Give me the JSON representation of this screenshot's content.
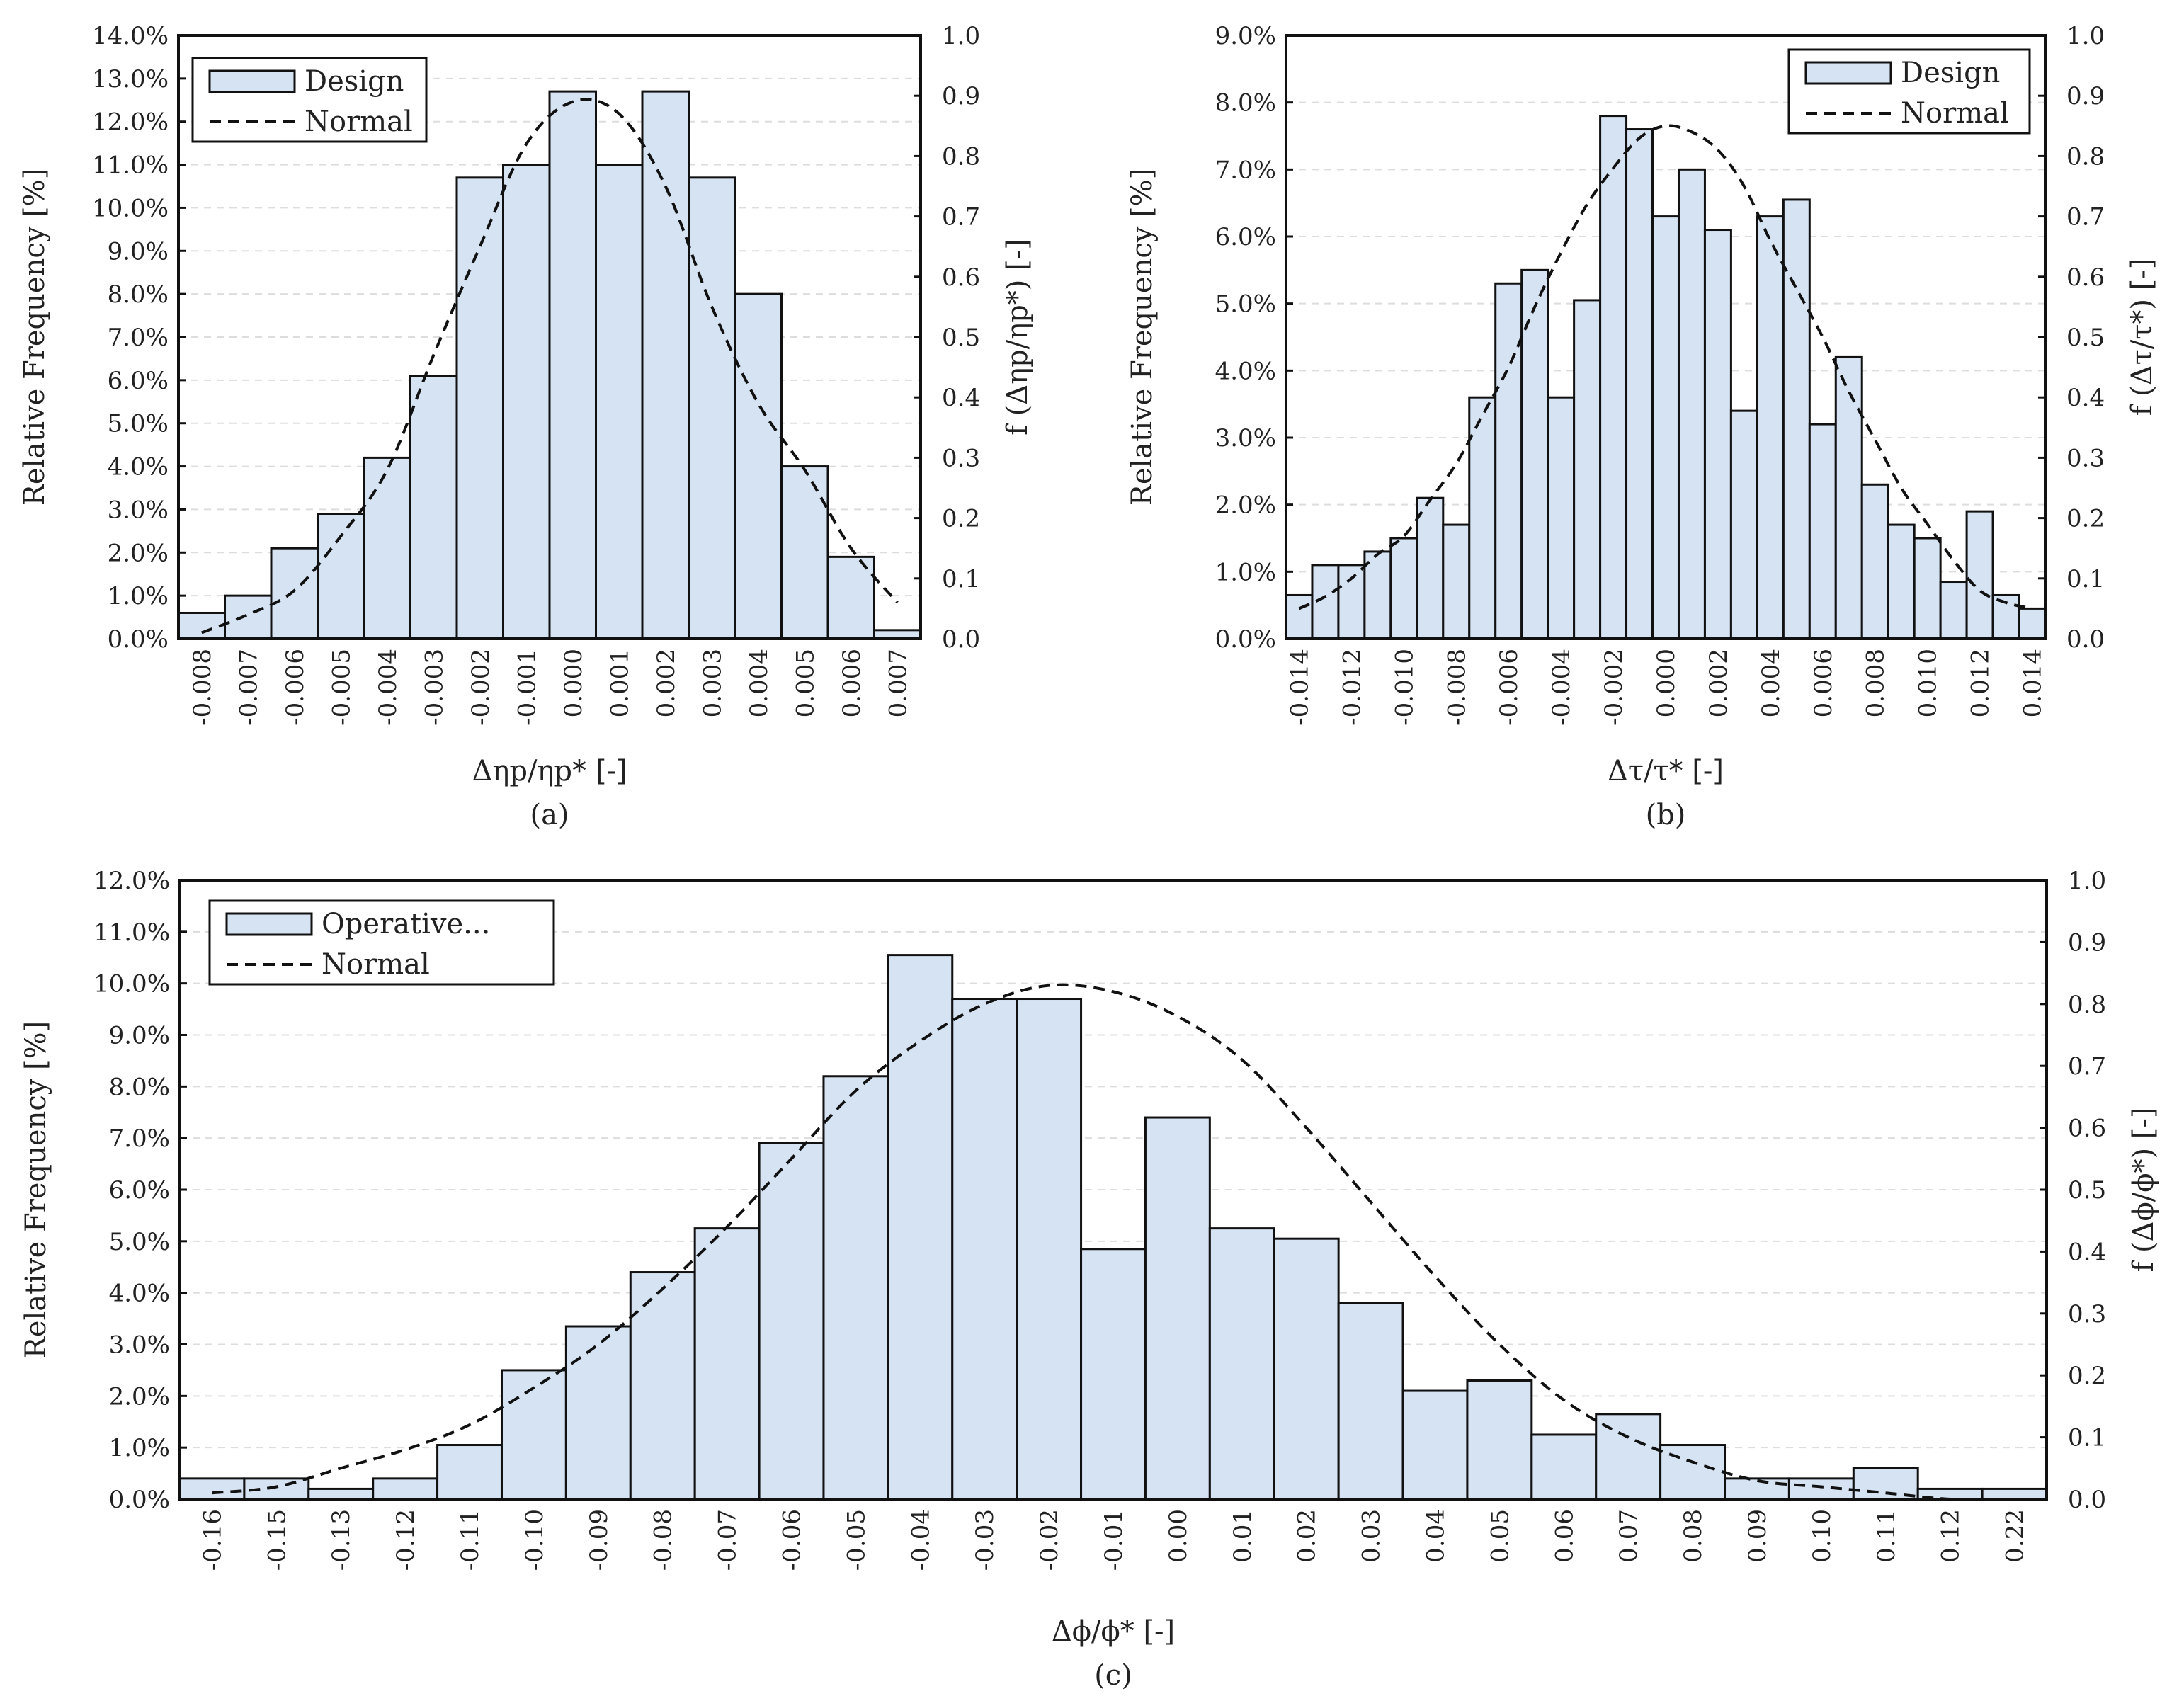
{
  "chart_data": [
    {
      "id": "a",
      "type": "bar",
      "caption": "(a)",
      "xlabel": "Δηp/ηp* [-]",
      "ylabel": "Relative Frequency [%]",
      "y2label": "f (Δηp/ηp*) [-]",
      "ylim": [
        0,
        14
      ],
      "ystep": 1,
      "y2lim": [
        0,
        1
      ],
      "y2step": 0.1,
      "categories": [
        "-0.008",
        "-0.007",
        "-0.006",
        "-0.005",
        "-0.004",
        "-0.003",
        "-0.002",
        "-0.001",
        "0.000",
        "0.001",
        "0.002",
        "0.003",
        "0.004",
        "0.005",
        "0.006",
        "0.007"
      ],
      "series": [
        {
          "name": "Design",
          "axis": "primary",
          "values": [
            0.6,
            1.0,
            2.1,
            2.9,
            4.2,
            6.1,
            10.7,
            11.0,
            12.7,
            11.0,
            12.7,
            10.7,
            8.0,
            4.0,
            1.9,
            0.2
          ]
        },
        {
          "name": "Normal",
          "axis": "secondary",
          "style": "dashed",
          "values": [
            0.01,
            0.04,
            0.08,
            0.17,
            0.28,
            0.47,
            0.65,
            0.82,
            0.89,
            0.87,
            0.75,
            0.55,
            0.39,
            0.28,
            0.15,
            0.06
          ]
        }
      ],
      "legend": [
        "Design",
        "Normal"
      ],
      "legend_position": "top-left"
    },
    {
      "id": "b",
      "type": "bar",
      "caption": "(b)",
      "xlabel": "Δτ/τ* [-]",
      "ylabel": "Relative Frequency [%]",
      "y2label": "f (Δτ/τ*) [-]",
      "ylim": [
        0,
        9
      ],
      "ystep": 1,
      "y2lim": [
        0,
        1
      ],
      "y2step": 0.1,
      "categories": [
        "-0.014",
        "",
        "-0.012",
        "",
        "-0.010",
        "",
        "-0.008",
        "",
        "-0.006",
        "",
        "-0.004",
        "",
        "-0.002",
        "",
        "0.000",
        "",
        "0.002",
        "",
        "0.004",
        "",
        "0.006",
        "",
        "0.008",
        "",
        "0.010",
        "",
        "0.012",
        "",
        "0.014"
      ],
      "tick_labels": [
        "-0.014",
        "-0.012",
        "-0.010",
        "-0.008",
        "-0.006",
        "-0.004",
        "-0.002",
        "0.000",
        "0.002",
        "0.004",
        "0.006",
        "0.008",
        "0.010",
        "0.012",
        "0.014"
      ],
      "series": [
        {
          "name": "Design",
          "axis": "primary",
          "values": [
            0.65,
            1.1,
            1.1,
            1.3,
            1.5,
            2.1,
            1.7,
            3.6,
            5.3,
            5.5,
            3.6,
            5.05,
            7.8,
            7.6,
            6.3,
            7.0,
            6.1,
            3.4,
            6.3,
            6.55,
            3.2,
            4.2,
            2.3,
            1.7,
            1.5,
            0.85,
            1.9,
            0.65,
            0.45
          ]
        },
        {
          "name": "Normal",
          "axis": "secondary",
          "style": "dashed",
          "values": [
            0.05,
            0.07,
            0.1,
            0.14,
            0.17,
            0.23,
            0.29,
            0.37,
            0.45,
            0.55,
            0.64,
            0.72,
            0.78,
            0.83,
            0.85,
            0.84,
            0.81,
            0.75,
            0.66,
            0.58,
            0.5,
            0.41,
            0.33,
            0.25,
            0.19,
            0.13,
            0.08,
            0.06,
            0.05
          ]
        }
      ],
      "legend": [
        "Design",
        "Normal"
      ],
      "legend_position": "top-right"
    },
    {
      "id": "c",
      "type": "bar",
      "caption": "(c)",
      "xlabel": "Δϕ/ϕ* [-]",
      "ylabel": "Relative Frequency [%]",
      "y2label": "f (Δϕ/ϕ*) [-]",
      "ylim": [
        0,
        12
      ],
      "ystep": 1,
      "y2lim": [
        0,
        1
      ],
      "y2step": 0.1,
      "categories": [
        "-0.16",
        "-0.15",
        "-0.13",
        "-0.12",
        "-0.11",
        "-0.10",
        "-0.09",
        "-0.08",
        "-0.07",
        "-0.06",
        "-0.05",
        "-0.04",
        "-0.03",
        "-0.02",
        "-0.01",
        "0.00",
        "0.01",
        "0.02",
        "0.03",
        "0.04",
        "0.05",
        "0.06",
        "0.07",
        "0.08",
        "0.09",
        "0.10",
        "0.11",
        "0.12",
        "0.22"
      ],
      "series": [
        {
          "name": "Operative...",
          "axis": "primary",
          "values": [
            0.4,
            0.4,
            0.2,
            0.4,
            1.05,
            2.5,
            3.35,
            4.4,
            5.25,
            6.9,
            8.2,
            10.55,
            9.7,
            9.7,
            4.85,
            7.4,
            5.25,
            5.05,
            3.8,
            2.1,
            2.3,
            1.25,
            1.65,
            1.05,
            0.4,
            0.4,
            0.6,
            0.2,
            0.2
          ]
        },
        {
          "name": "Normal",
          "axis": "secondary",
          "style": "dashed",
          "values": [
            0.01,
            0.02,
            0.05,
            0.08,
            0.12,
            0.18,
            0.25,
            0.34,
            0.44,
            0.55,
            0.66,
            0.74,
            0.8,
            0.83,
            0.82,
            0.78,
            0.71,
            0.6,
            0.48,
            0.36,
            0.25,
            0.16,
            0.1,
            0.06,
            0.03,
            0.02,
            0.01,
            0.0,
            0.0
          ]
        }
      ],
      "legend": [
        "Operative...",
        "Normal"
      ],
      "legend_position": "top-left"
    }
  ]
}
